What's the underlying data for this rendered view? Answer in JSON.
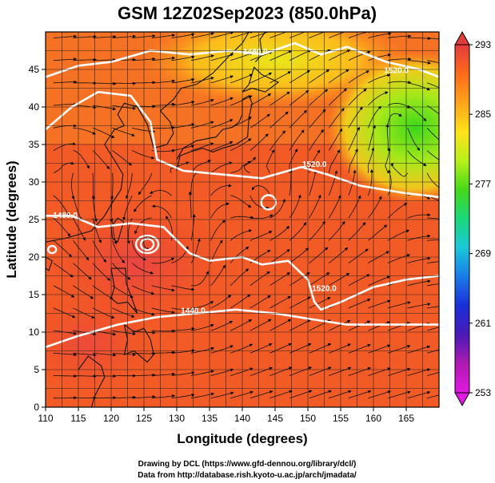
{
  "title": "GSM 12Z02Sep2023 (850.0hPa)",
  "xlabel": "Longitude (degrees)",
  "ylabel": "Latitude  (degrees)",
  "credits": {
    "line1": "Drawing by DCL (https://www.gfd-dennou.org/library/dcl/)",
    "line2": "Data from http://database.rish.kyoto-u.ac.jp/arch/jmadata/"
  },
  "chart_data": {
    "type": "heatmap",
    "xlim": [
      110,
      170
    ],
    "ylim": [
      0,
      50
    ],
    "x_ticks": [
      "110",
      "115",
      "120",
      "125",
      "130",
      "135",
      "140",
      "145",
      "150",
      "155",
      "160",
      "165"
    ],
    "y_ticks": [
      "0",
      "5",
      "10",
      "15",
      "20",
      "25",
      "30",
      "35",
      "40",
      "45"
    ],
    "grid": true,
    "colorbar": {
      "min": 253,
      "max": 293,
      "ticks": [
        "293",
        "285",
        "277",
        "269",
        "261",
        "253"
      ],
      "colors": [
        "#e23c3c",
        "#ff6a1a",
        "#ffa31a",
        "#ffe31a",
        "#b8f01a",
        "#46d81a",
        "#1ad87a",
        "#1ac8d8",
        "#1a7ae8",
        "#1a2ed8",
        "#4a1ab8",
        "#b01ab0",
        "#e01ae0"
      ]
    },
    "contour_labels": [
      {
        "text": "1480.0",
        "lon": 142.0,
        "lat": 47.0
      },
      {
        "text": "1520.0",
        "lon": 163.5,
        "lat": 44.5
      },
      {
        "text": "1520.0",
        "lon": 151.0,
        "lat": 32.0
      },
      {
        "text": "1480.0",
        "lon": 113.0,
        "lat": 25.2
      },
      {
        "text": "1440.0",
        "lon": 132.5,
        "lat": 12.5
      },
      {
        "text": "1520.0",
        "lon": 152.5,
        "lat": 15.5
      }
    ],
    "field_regions": [
      {
        "lon": 140,
        "lat": 25,
        "value": 289
      },
      {
        "lon": 120,
        "lat": 10,
        "value": 291
      },
      {
        "lon": 160,
        "lat": 38,
        "value": 279
      },
      {
        "lon": 143,
        "lat": 46,
        "value": 283
      },
      {
        "lon": 125,
        "lat": 22,
        "value": 292
      }
    ]
  }
}
